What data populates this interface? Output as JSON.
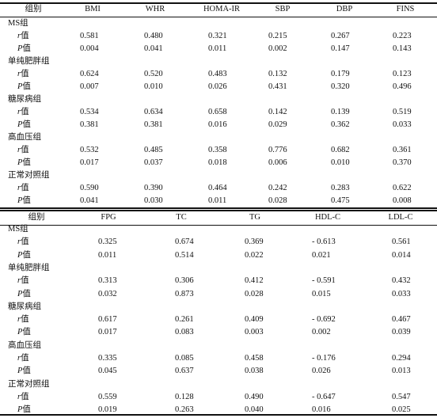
{
  "caption_fragment": "",
  "table1": {
    "headers": [
      "组别",
      "BMI",
      "WHR",
      "HOMA-IR",
      "SBP",
      "DBP",
      "FINS"
    ],
    "groups": [
      {
        "name": "MS组",
        "rows": [
          {
            "label": "r值",
            "values": [
              "0.581",
              "0.480",
              "0.321",
              "0.215",
              "0.267",
              "0.223"
            ]
          },
          {
            "label": "P值",
            "values": [
              "0.004",
              "0.041",
              "0.011",
              "0.002",
              "0.147",
              "0.143"
            ]
          }
        ]
      },
      {
        "name": "单纯肥胖组",
        "rows": [
          {
            "label": "r值",
            "values": [
              "0.624",
              "0.520",
              "0.483",
              "0.132",
              "0.179",
              "0.123"
            ]
          },
          {
            "label": "P值",
            "values": [
              "0.007",
              "0.010",
              "0.026",
              "0.431",
              "0.320",
              "0.496"
            ]
          }
        ]
      },
      {
        "name": "糖尿病组",
        "rows": [
          {
            "label": "r值",
            "values": [
              "0.534",
              "0.634",
              "0.658",
              "0.142",
              "0.139",
              "0.519"
            ]
          },
          {
            "label": "P值",
            "values": [
              "0.381",
              "0.381",
              "0.016",
              "0.029",
              "0.362",
              "0.033"
            ]
          }
        ]
      },
      {
        "name": "高血压组",
        "rows": [
          {
            "label": "r值",
            "values": [
              "0.532",
              "0.485",
              "0.358",
              "0.776",
              "0.682",
              "0.361"
            ]
          },
          {
            "label": "P值",
            "values": [
              "0.017",
              "0.037",
              "0.018",
              "0.006",
              "0.010",
              "0.370"
            ]
          }
        ]
      },
      {
        "name": "正常对照组",
        "rows": [
          {
            "label": "r值",
            "values": [
              "0.590",
              "0.390",
              "0.464",
              "0.242",
              "0.283",
              "0.622"
            ]
          },
          {
            "label": "P值",
            "values": [
              "0.041",
              "0.030",
              "0.011",
              "0.028",
              "0.475",
              "0.008"
            ]
          }
        ]
      }
    ]
  },
  "table2": {
    "headers": [
      "组别",
      "FPG",
      "TC",
      "TG",
      "HDL-C",
      "LDL-C"
    ],
    "groups": [
      {
        "name": "MS组",
        "rows": [
          {
            "label": "r值",
            "values": [
              "0.325",
              "0.674",
              "0.369",
              "- 0.613",
              "0.561"
            ]
          },
          {
            "label": "P值",
            "values": [
              "0.011",
              "0.514",
              "0.022",
              "0.021",
              "0.014"
            ]
          }
        ]
      },
      {
        "name": "单纯肥胖组",
        "rows": [
          {
            "label": "r值",
            "values": [
              "0.313",
              "0.306",
              "0.412",
              "- 0.591",
              "0.432"
            ]
          },
          {
            "label": "P值",
            "values": [
              "0.032",
              "0.873",
              "0.028",
              "0.015",
              "0.033"
            ]
          }
        ]
      },
      {
        "name": "糖尿病组",
        "rows": [
          {
            "label": "r值",
            "values": [
              "0.617",
              "0.261",
              "0.409",
              "- 0.692",
              "0.467"
            ]
          },
          {
            "label": "P值",
            "values": [
              "0.017",
              "0.083",
              "0.003",
              "0.002",
              "0.039"
            ]
          }
        ]
      },
      {
        "name": "高血压组",
        "rows": [
          {
            "label": "r值",
            "values": [
              "0.335",
              "0.085",
              "0.458",
              "- 0.176",
              "0.294"
            ]
          },
          {
            "label": "P值",
            "values": [
              "0.045",
              "0.637",
              "0.038",
              "0.026",
              "0.013"
            ]
          }
        ]
      },
      {
        "name": "正常对照组",
        "rows": [
          {
            "label": "r值",
            "values": [
              "0.559",
              "0.128",
              "0.490",
              "- 0.647",
              "0.547"
            ]
          },
          {
            "label": "P值",
            "values": [
              "0.019",
              "0.263",
              "0.040",
              "0.016",
              "0.025"
            ]
          }
        ]
      }
    ]
  }
}
